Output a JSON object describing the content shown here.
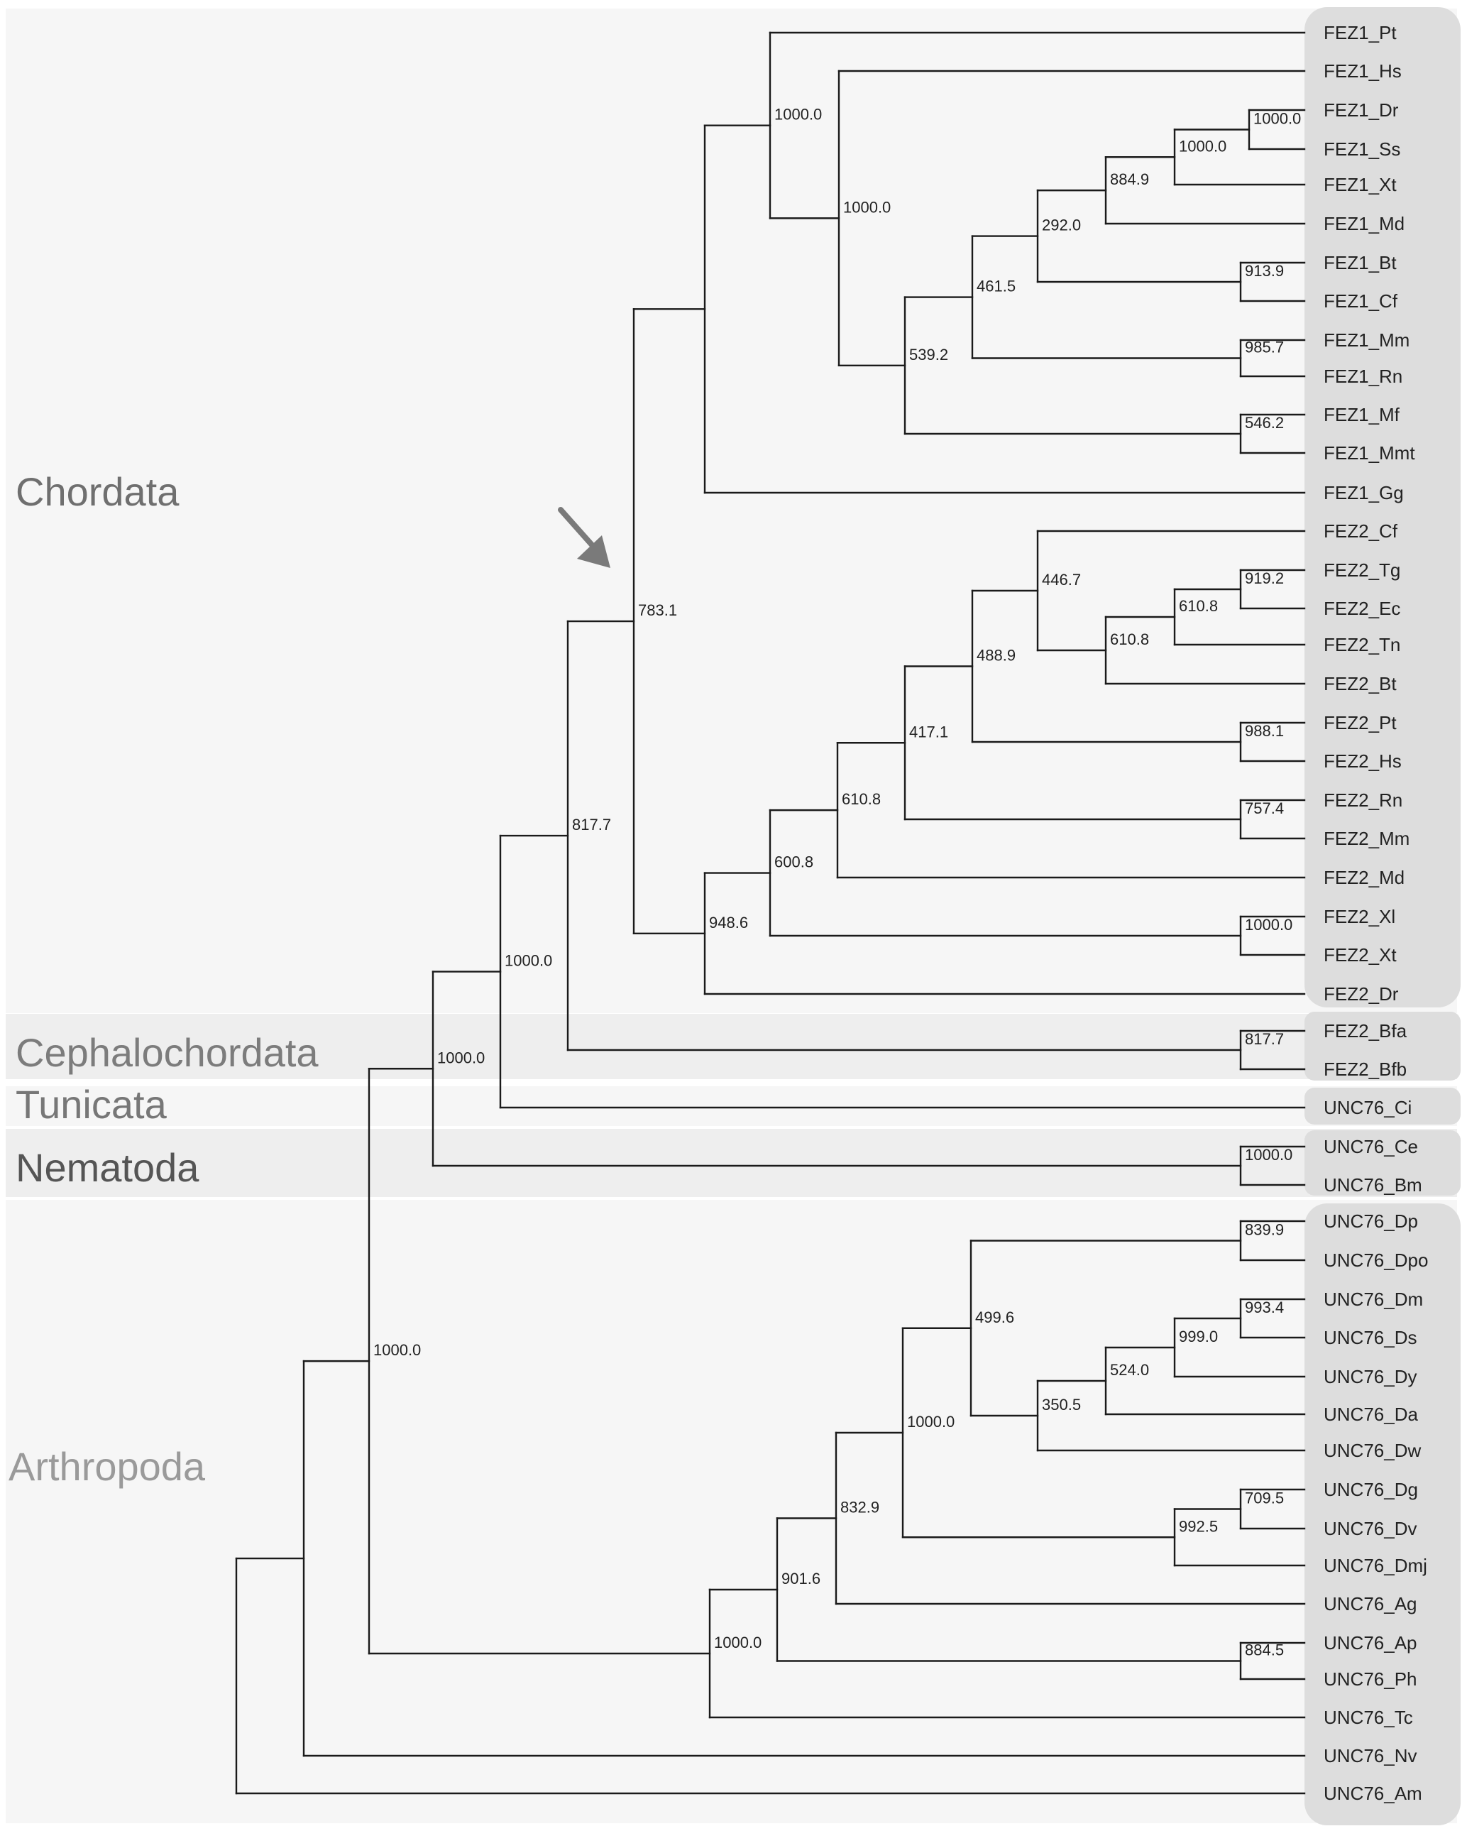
{
  "colors": {
    "background": "#ffffff",
    "band_light": "#f6f6f6",
    "band_mid": "#eeeeee",
    "leaf_box": "#dddddd",
    "chordata_label": "#6f6f6f",
    "cephalochordata_label": "#7c7c7c",
    "tunicata_label": "#777777",
    "nematoda_label": "#555555",
    "arthropoda_label": "#9a9a9a",
    "arrow": "#7a7a7a"
  },
  "groups": [
    {
      "key": "chordata",
      "label": "Chordata"
    },
    {
      "key": "cephalochordata",
      "label": "Cephalochordata"
    },
    {
      "key": "tunicata",
      "label": "Tunicata"
    },
    {
      "key": "nematoda",
      "label": "Nematoda"
    },
    {
      "key": "arthropoda",
      "label": "Arthropoda"
    }
  ],
  "arrow_icon": "arrow-down-right-icon",
  "leaves": [
    "FEZ1_Pt",
    "FEZ1_Hs",
    "FEZ1_Dr",
    "FEZ1_Ss",
    "FEZ1_Xt",
    "FEZ1_Md",
    "FEZ1_Bt",
    "FEZ1_Cf",
    "FEZ1_Mm",
    "FEZ1_Rn",
    "FEZ1_Mf",
    "FEZ1_Mmt",
    "FEZ1_Gg",
    "FEZ2_Cf",
    "FEZ2_Tg",
    "FEZ2_Ec",
    "FEZ2_Tn",
    "FEZ2_Bt",
    "FEZ2_Pt",
    "FEZ2_Hs",
    "FEZ2_Rn",
    "FEZ2_Mm",
    "FEZ2_Md",
    "FEZ2_Xl",
    "FEZ2_Xt",
    "FEZ2_Dr",
    "FEZ2_Bfa",
    "FEZ2_Bfb",
    "UNC76_Ci",
    "UNC76_Ce",
    "UNC76_Bm",
    "UNC76_Dp",
    "UNC76_Dpo",
    "UNC76_Dm",
    "UNC76_Ds",
    "UNC76_Dy",
    "UNC76_Da",
    "UNC76_Dw",
    "UNC76_Dg",
    "UNC76_Dv",
    "UNC76_Dmj",
    "UNC76_Ag",
    "UNC76_Ap",
    "UNC76_Ph",
    "UNC76_Tc",
    "UNC76_Nv",
    "UNC76_Am"
  ],
  "bootstrap": [
    "1000.0",
    "1000.0",
    "1000.0",
    "1000.0",
    "884.9",
    "292.0",
    "461.5",
    "913.9",
    "539.2",
    "985.7",
    "546.2",
    "783.1",
    "446.7",
    "919.2",
    "610.8",
    "610.8",
    "488.9",
    "988.1",
    "417.1",
    "610.8",
    "757.4",
    "600.8",
    "1000.0",
    "948.6",
    "817.7",
    "1000.0",
    "1000.0",
    "1000.0",
    "1000.0",
    "839.9",
    "499.6",
    "993.4",
    "999.0",
    "524.0",
    "350.5",
    "1000.0",
    "709.5",
    "992.5",
    "832.9",
    "884.5",
    "901.6",
    "1000.0",
    "1000.0"
  ]
}
